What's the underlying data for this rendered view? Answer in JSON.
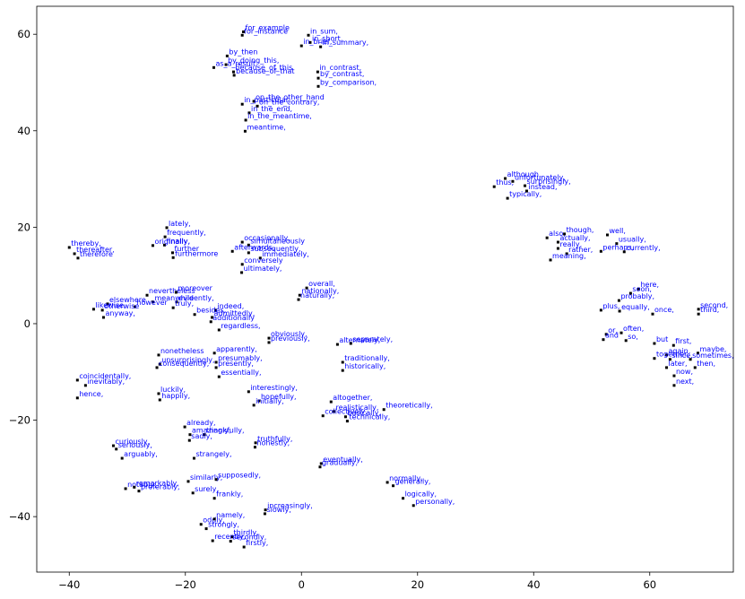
{
  "chart_data": {
    "type": "scatter",
    "labels": [
      "for_example",
      "for_instance",
      "in_sum,",
      "in_short,",
      "in_brief,",
      "in_summary,",
      "by_then",
      "as_a_result,",
      "by_doing_this,",
      "because_of_this",
      "because_of_that",
      "in_contrast,",
      "by_contrast,",
      "by_comparison,",
      "on_the_other_hand",
      "in_particular,",
      "on_the_contrary,",
      "in_the_end,",
      "in_the_meantime,",
      "meantime,",
      "although,",
      "thus,",
      "unfortunately,",
      "surprisingly,",
      "instead,",
      "typically,",
      "lately,",
      "frequently,",
      "finally,",
      "originally,",
      "further",
      "furthermore",
      "thereby,",
      "thereafter,",
      "therefore",
      "occasionally,",
      "simultaneously",
      "afterwards,",
      "subsequently,",
      "immediately,",
      "conversely",
      "ultimately,",
      "overall,",
      "nationally,",
      "naturally,",
      "nevertheless",
      "moreover",
      "evidently,",
      "meanwhile",
      "elsewhere",
      "however",
      "likewise,",
      "otherwise",
      "truly,",
      "anyway,",
      "indeed,",
      "besides,",
      "admittedly,",
      "additionally",
      "regardless,",
      "obviously,",
      "previously,",
      "apparently,",
      "presumably,",
      "nonetheless",
      "unsurprisingly,",
      "consequently,",
      "presently,",
      "essentially,",
      "coincidentally,",
      "inevitably,",
      "hence,",
      "luckily,",
      "happily,",
      "interestingly,",
      "hopefully,",
      "initially,",
      "alternately,",
      "separately,",
      "traditionally,",
      "historically,",
      "altogether,",
      "theoretically,",
      "realistically,",
      "collectively,",
      "basically,",
      "technically,",
      "already,",
      "thankfully,",
      "amazingly,",
      "sadly,",
      "truthfully,",
      "honestly,",
      "curiously,",
      "seriously,",
      "arguably,",
      "strangely,",
      "eventually,",
      "gradually,",
      "similarly,",
      "supposedly,",
      "notably,",
      "remarkably,",
      "preferably,",
      "surely,",
      "frankly,",
      "normally,",
      "generally,",
      "logically,",
      "personally,",
      "increasingly,",
      "slowly,",
      "oddly,",
      "namely,",
      "strongly,",
      "thirdly,",
      "recently,",
      "secondly,",
      "firstly,",
      "also,",
      "though,",
      "actually,",
      "really,",
      "rather,",
      "meaning,",
      "well,",
      "usually,",
      "perhaps,",
      "currently,",
      "here,",
      "soon,",
      "probably,",
      "plus,",
      "equally,",
      "once,",
      "second,",
      "third,",
      "or,",
      "often,",
      "and",
      "so,",
      "but",
      "first,",
      "again,",
      "together,",
      "since,",
      "maybe,",
      "sometimes,",
      "later,",
      "then,",
      "now,",
      "next,"
    ],
    "x": [
      -10.0,
      -10.2,
      1.2,
      1.5,
      0.0,
      3.3,
      -12.8,
      -15.1,
      -13.0,
      -11.7,
      -11.6,
      2.8,
      2.9,
      2.9,
      -8.2,
      -10.2,
      -7.6,
      -9.0,
      -9.6,
      -9.7,
      35.1,
      33.2,
      36.4,
      38.5,
      38.8,
      35.5,
      -23.2,
      -23.5,
      -23.6,
      -25.6,
      -22.2,
      -22.1,
      -40.0,
      -39.1,
      -38.5,
      -10.2,
      -9.1,
      -11.9,
      -9.1,
      -7.1,
      -10.2,
      -10.3,
      0.9,
      -0.3,
      -0.5,
      -26.6,
      -21.6,
      -21.5,
      -25.6,
      -33.4,
      -28.7,
      -35.8,
      -34.3,
      -22.1,
      -34.1,
      -14.8,
      -18.4,
      -15.4,
      -15.6,
      -14.2,
      -5.6,
      -5.6,
      -15.0,
      -14.7,
      -24.6,
      -24.4,
      -24.9,
      -14.7,
      -14.2,
      -38.6,
      -37.2,
      -38.6,
      -24.6,
      -24.4,
      -9.1,
      -7.3,
      -8.2,
      6.2,
      8.5,
      7.1,
      7.1,
      5.1,
      14.2,
      5.6,
      3.7,
      7.6,
      7.9,
      -20.1,
      -16.7,
      -19.2,
      -19.3,
      -7.9,
      -8.0,
      -32.4,
      -31.9,
      -30.9,
      -18.5,
      3.4,
      3.2,
      -19.5,
      -14.7,
      -30.3,
      -28.8,
      -28.0,
      -18.7,
      -15.0,
      14.8,
      15.8,
      17.5,
      19.3,
      -6.2,
      -6.3,
      -17.3,
      -15.0,
      -16.4,
      -12.0,
      -15.3,
      -12.2,
      -9.9,
      42.3,
      45.3,
      44.2,
      44.2,
      45.7,
      42.9,
      52.7,
      54.3,
      51.6,
      55.6,
      58.1,
      56.7,
      54.7,
      51.6,
      54.8,
      60.5,
      68.4,
      68.4,
      52.5,
      55.1,
      52.0,
      55.9,
      60.8,
      64.1,
      62.9,
      60.8,
      63.5,
      68.3,
      67.0,
      62.9,
      67.8,
      64.2,
      64.2
    ],
    "values": [
      60.5,
      59.8,
      59.8,
      58.3,
      57.6,
      57.4,
      55.5,
      53.1,
      53.7,
      52.2,
      51.5,
      52.2,
      50.9,
      49.2,
      46.1,
      45.5,
      45.1,
      43.7,
      42.2,
      39.9,
      30.1,
      28.4,
      29.5,
      28.6,
      27.5,
      26.0,
      19.9,
      18.0,
      16.3,
      16.2,
      14.7,
      13.7,
      15.8,
      14.5,
      13.6,
      16.9,
      16.3,
      15.0,
      14.7,
      13.6,
      12.3,
      10.6,
      7.4,
      5.9,
      5.0,
      5.9,
      6.5,
      4.5,
      4.5,
      4.1,
      3.5,
      3.0,
      2.8,
      3.3,
      1.3,
      2.8,
      1.9,
      1.3,
      0.4,
      -1.3,
      -3.0,
      -3.9,
      -6.1,
      -8.0,
      -6.5,
      -8.4,
      -9.1,
      -9.1,
      -11.0,
      -11.7,
      -12.8,
      -15.4,
      -14.5,
      -15.8,
      -14.1,
      -16.0,
      -16.9,
      -4.3,
      -4.1,
      -8.0,
      -9.7,
      -16.2,
      -17.8,
      -18.2,
      -19.1,
      -19.3,
      -20.2,
      -21.4,
      -23.0,
      -23.0,
      -24.2,
      -24.7,
      -25.6,
      -25.3,
      -26.0,
      -27.9,
      -27.9,
      -29.0,
      -29.7,
      -32.7,
      -32.3,
      -34.2,
      -33.9,
      -34.7,
      -35.1,
      -36.2,
      -32.9,
      -33.6,
      -36.2,
      -37.7,
      -38.6,
      -39.4,
      -41.6,
      -40.5,
      -42.5,
      -44.2,
      -45.0,
      -45.1,
      -46.3,
      17.8,
      18.6,
      16.9,
      15.6,
      14.5,
      13.2,
      18.4,
      16.6,
      15.0,
      14.9,
      7.2,
      6.3,
      4.8,
      2.8,
      2.6,
      2.0,
      3.0,
      2.0,
      -2.2,
      -1.9,
      -3.3,
      -3.5,
      -4.1,
      -4.5,
      -6.5,
      -7.2,
      -7.4,
      -6.1,
      -7.4,
      -9.1,
      -9.1,
      -10.8,
      -12.8
    ],
    "marker_color": "#000000",
    "label_color": "#0000ff",
    "xlim": [
      -45.6,
      74.4
    ],
    "ylim": [
      -51.5,
      65.8
    ],
    "xticks": [
      {
        "value": -40,
        "label": "−40"
      },
      {
        "value": -20,
        "label": "−20"
      },
      0,
      20,
      40,
      60
    ],
    "yticks": [
      {
        "value": -40,
        "label": "−40"
      },
      {
        "value": -20,
        "label": "−20"
      },
      0,
      20,
      40,
      60
    ]
  }
}
